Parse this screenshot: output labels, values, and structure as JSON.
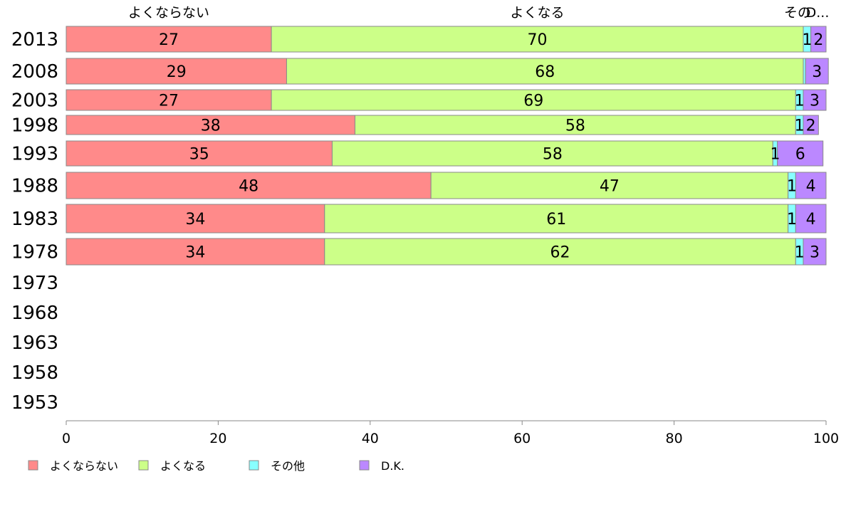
{
  "chart_data": {
    "type": "bar",
    "orientation": "horizontal",
    "stacked": true,
    "categories": [
      "2013",
      "2008",
      "2003",
      "1998",
      "1993",
      "1988",
      "1983",
      "1978",
      "1973",
      "1968",
      "1963",
      "1958",
      "1953"
    ],
    "series": [
      {
        "name": "よくならない",
        "color": "#ff8a8a",
        "values": [
          27,
          29,
          27,
          38,
          35,
          48,
          34,
          34,
          null,
          null,
          null,
          null,
          null
        ]
      },
      {
        "name": "よくなる",
        "color": "#ccff88",
        "values": [
          70,
          68,
          69,
          58,
          58,
          47,
          61,
          62,
          null,
          null,
          null,
          null,
          null
        ]
      },
      {
        "name": "その他",
        "color": "#88ffff",
        "values": [
          1,
          0.3,
          1,
          1,
          0.6,
          1,
          1,
          1,
          null,
          null,
          null,
          null,
          null
        ]
      },
      {
        "name": "D.K.",
        "color": "#bb88ff",
        "values": [
          2,
          3,
          3,
          2,
          6,
          4,
          4,
          3,
          null,
          null,
          null,
          null,
          null
        ]
      }
    ],
    "data_labels": [
      [
        "27",
        "29",
        "27",
        "38",
        "35",
        "48",
        "34",
        "34"
      ],
      [
        "70",
        "68",
        "69",
        "58",
        "58",
        "47",
        "61",
        "62"
      ],
      [
        "1",
        "",
        "1",
        "1",
        "1",
        "1",
        "1",
        "1"
      ],
      [
        "2",
        "3",
        "3",
        "2",
        "6",
        "4",
        "4",
        "3"
      ]
    ],
    "column_headers": [
      "よくならない",
      "よくなる",
      "その",
      "D..."
    ],
    "x_ticks": [
      "0",
      "20",
      "40",
      "60",
      "80",
      "100"
    ],
    "xlim": [
      0,
      100
    ],
    "legend": [
      "よくならない",
      "よくなる",
      "その他",
      "D.K."
    ],
    "legend_position": "bottom-left",
    "grid": false
  }
}
